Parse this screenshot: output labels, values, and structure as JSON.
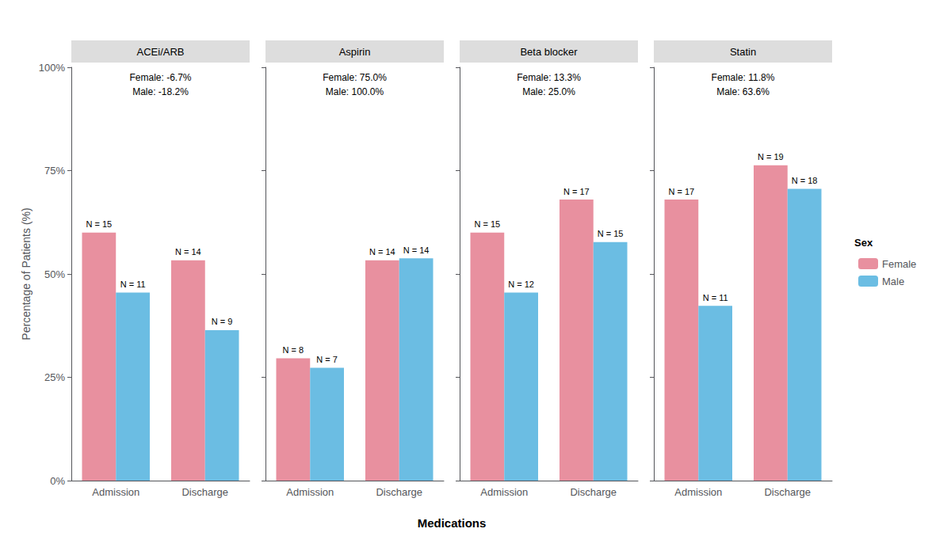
{
  "chart_data": {
    "type": "bar",
    "xlabel": "Medications",
    "ylabel": "Percentage of Patients (%)",
    "legend_title": "Sex",
    "legend": "right",
    "grid": false,
    "ylim": [
      0,
      100
    ],
    "yticks": [
      {
        "value": 0,
        "label": "0%"
      },
      {
        "value": 25,
        "label": "25%"
      },
      {
        "value": 50,
        "label": "50%"
      },
      {
        "value": 75,
        "label": "75%"
      },
      {
        "value": 100,
        "label": "100%"
      }
    ],
    "panels": [
      {
        "title": "ACEi/ARB",
        "categories": [
          "Admission",
          "Discharge"
        ],
        "annotation": "Female: -6.7%\nMale: -18.2%",
        "series": [
          {
            "name": "Female",
            "color": "#E8909F",
            "values": [
              60.0,
              53.3
            ],
            "n_labels": [
              "N = 15",
              "N = 14"
            ]
          },
          {
            "name": "Male",
            "color": "#6BBDE3",
            "values": [
              45.5,
              36.4
            ],
            "n_labels": [
              "N = 11",
              "N = 9"
            ]
          }
        ]
      },
      {
        "title": "Aspirin",
        "categories": [
          "Admission",
          "Discharge"
        ],
        "annotation": "Female: 75.0%\nMale: 100.0%",
        "series": [
          {
            "name": "Female",
            "color": "#E8909F",
            "values": [
              29.6,
              53.3
            ],
            "n_labels": [
              "N = 8",
              "N = 14"
            ]
          },
          {
            "name": "Male",
            "color": "#6BBDE3",
            "values": [
              27.3,
              53.8
            ],
            "n_labels": [
              "N = 7",
              "N = 14"
            ]
          }
        ]
      },
      {
        "title": "Beta blocker",
        "categories": [
          "Admission",
          "Discharge"
        ],
        "annotation": "Female: 13.3%\nMale: 25.0%",
        "series": [
          {
            "name": "Female",
            "color": "#E8909F",
            "values": [
              60.0,
              68.0
            ],
            "n_labels": [
              "N = 15",
              "N = 17"
            ]
          },
          {
            "name": "Male",
            "color": "#6BBDE3",
            "values": [
              45.5,
              57.7
            ],
            "n_labels": [
              "N = 12",
              "N = 15"
            ]
          }
        ]
      },
      {
        "title": "Statin",
        "categories": [
          "Admission",
          "Discharge"
        ],
        "annotation": "Female: 11.8%\nMale: 63.6%",
        "series": [
          {
            "name": "Female",
            "color": "#E8909F",
            "values": [
              68.0,
              76.3
            ],
            "n_labels": [
              "N = 17",
              "N = 19"
            ]
          },
          {
            "name": "Male",
            "color": "#6BBDE3",
            "values": [
              42.3,
              70.6
            ],
            "n_labels": [
              "N = 11",
              "N = 18"
            ]
          }
        ]
      }
    ]
  }
}
